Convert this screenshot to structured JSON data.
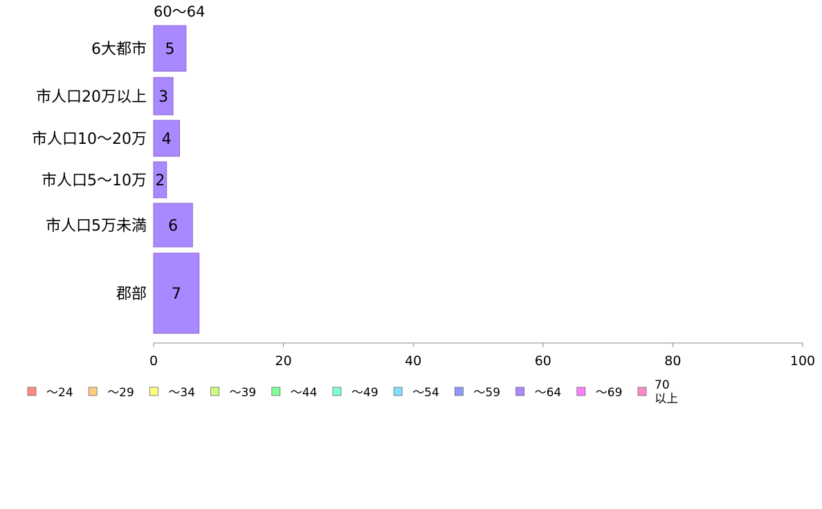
{
  "chart_data": {
    "type": "bar",
    "orientation": "horizontal",
    "series_label": "60〜64",
    "categories": [
      "6大都市",
      "市人口20万以上",
      "市人口10〜20万",
      "市人口5〜10万",
      "市人口5万未満",
      "郡部"
    ],
    "series": [
      {
        "name": "〜64",
        "values": [
          5,
          3,
          4,
          2,
          6,
          7
        ]
      }
    ],
    "xlim": [
      0,
      100
    ],
    "xticks": [
      "0",
      "20",
      "40",
      "60",
      "80",
      "100"
    ],
    "legend_position": "bottom",
    "legend": [
      {
        "label": "〜24",
        "color": "#ff8a80"
      },
      {
        "label": "〜29",
        "color": "#ffcc80"
      },
      {
        "label": "〜34",
        "color": "#ffff80"
      },
      {
        "label": "〜39",
        "color": "#ccff80"
      },
      {
        "label": "〜44",
        "color": "#80ff99"
      },
      {
        "label": "〜49",
        "color": "#80ffd5"
      },
      {
        "label": "〜54",
        "color": "#80dfff"
      },
      {
        "label": "〜59",
        "color": "#8f99ff"
      },
      {
        "label": "〜64",
        "color": "#aa88ff"
      },
      {
        "label": "〜69",
        "color": "#ff80ff"
      },
      {
        "label": "70\n以上",
        "color": "#ff88cc"
      }
    ],
    "bar_color": "#aa88ff",
    "bar_edge_color": "#8866cc",
    "axis_color": "#888888"
  }
}
